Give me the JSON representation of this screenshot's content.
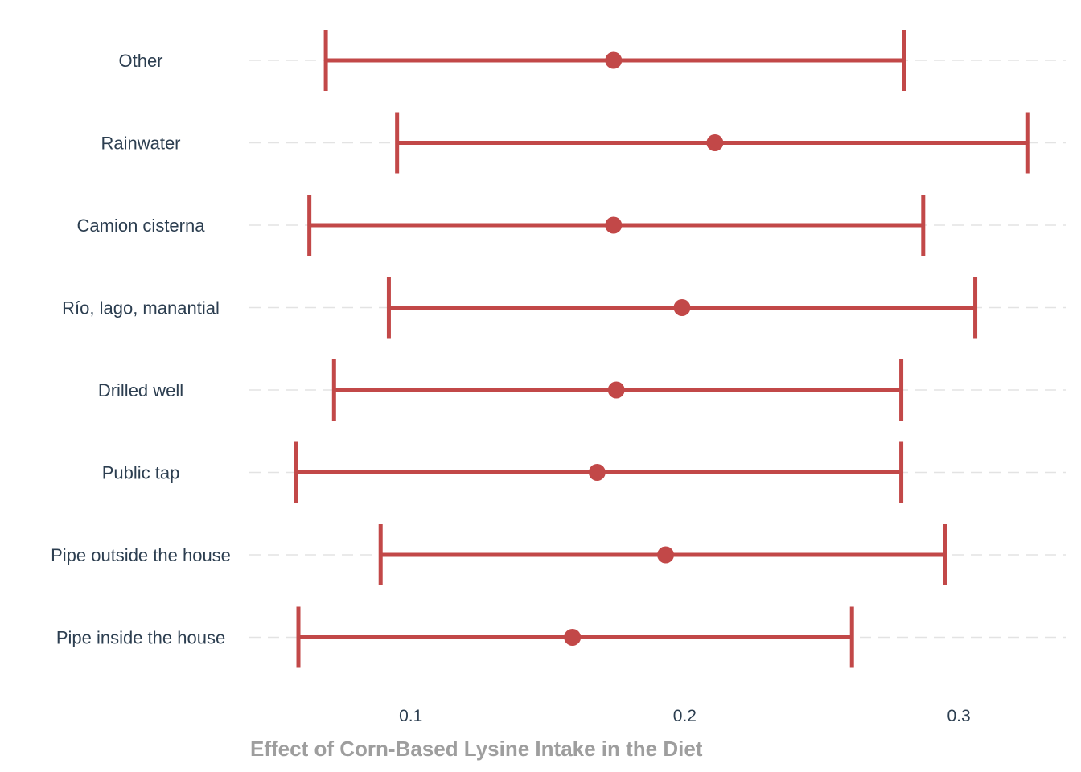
{
  "chart_data": {
    "type": "errorbar",
    "orientation": "horizontal",
    "xlabel": "Effect of Corn-Based Lysine Intake in the Diet",
    "ylabel": "",
    "xlim": [
      0.04,
      0.34
    ],
    "xticks": [
      0.1,
      0.2,
      0.3
    ],
    "xtick_labels": [
      "0.1",
      "0.2",
      "0.3"
    ],
    "grid": "horizontal dashed",
    "color": "#c24848",
    "categories": [
      "Other",
      "Rainwater",
      "Camion cisterna",
      "Río, lago, manantial",
      "Drilled well",
      "Public tap",
      "Pipe outside the house",
      "Pipe inside the house"
    ],
    "estimates": [
      0.174,
      0.211,
      0.174,
      0.199,
      0.175,
      0.168,
      0.193,
      0.159
    ],
    "lower": [
      0.069,
      0.095,
      0.063,
      0.092,
      0.072,
      0.058,
      0.089,
      0.059
    ],
    "upper": [
      0.28,
      0.325,
      0.287,
      0.306,
      0.279,
      0.279,
      0.295,
      0.261
    ]
  }
}
